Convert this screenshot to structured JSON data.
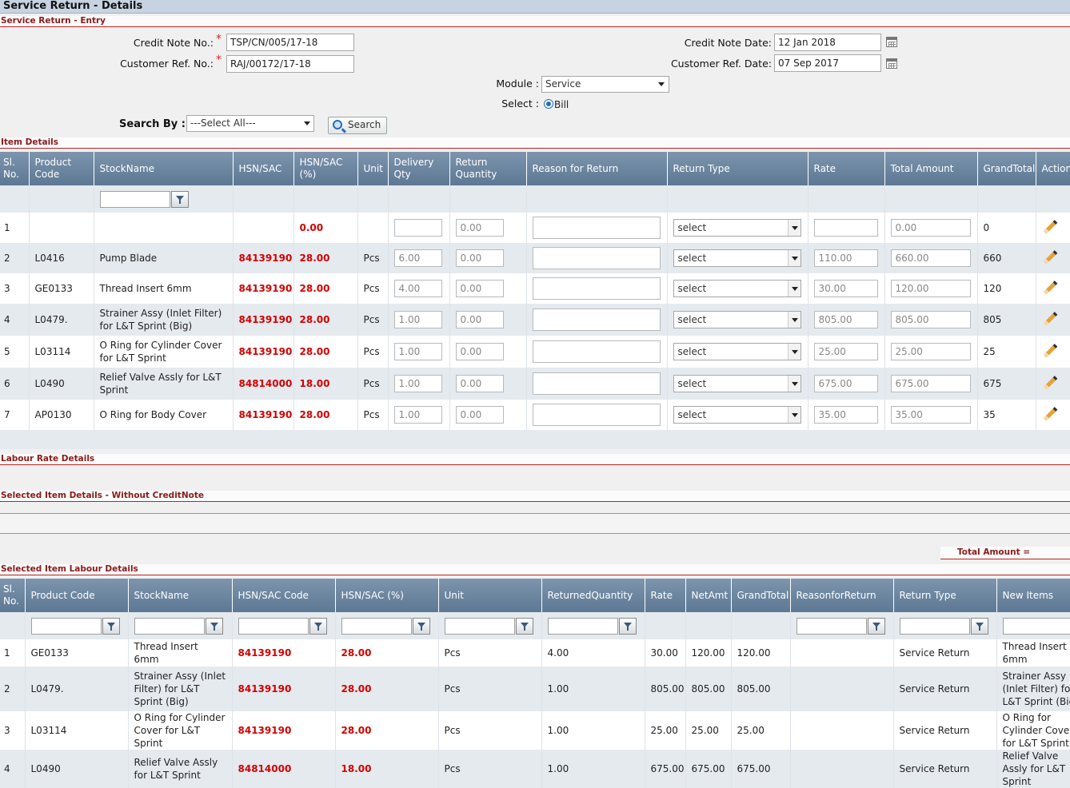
{
  "page_title": "Service Return - Details",
  "entry": {
    "section_title": "Service Return - Entry",
    "credit_note_no_label": "Credit Note No.:",
    "credit_note_no_value": "TSP/CN/005/17-18",
    "customer_ref_no_label": "Customer Ref. No.:",
    "customer_ref_no_value": "RAJ/00172/17-18",
    "required_mark": "*",
    "credit_note_date_label": "Credit Note Date:",
    "credit_note_date_value": "12 Jan 2018",
    "customer_ref_date_label": "Customer Ref. Date:",
    "customer_ref_date_value": "07 Sep 2017",
    "module_label": "Module :",
    "module_value": "Service",
    "select_label": "Select :",
    "select_option": "Bill",
    "search_by_label": "Search By :",
    "search_by_value": "---Select All---",
    "search_button": "Search"
  },
  "item_details": {
    "section_title": "Item Details",
    "headers": [
      "Sl. No.",
      "Product Code",
      "StockName",
      "HSN/SAC",
      "HSN/SAC (%)",
      "Unit",
      "Delivery Qty",
      "Return Quantity",
      "Reason for Return",
      "Return Type",
      "Rate",
      "Total Amount",
      "GrandTotal",
      "Action"
    ],
    "rows": [
      {
        "sl": "1",
        "code": "",
        "name": "",
        "hsn": "",
        "pct": "0.00",
        "unit": "",
        "delivery": "",
        "return_qty": "0.00",
        "reason": "",
        "return_type": "select",
        "rate": "",
        "total": "0.00",
        "grand": "0"
      },
      {
        "sl": "2",
        "code": "L0416",
        "name": "Pump Blade",
        "hsn": "84139190",
        "pct": "28.00",
        "unit": "Pcs",
        "delivery": "6.00",
        "return_qty": "0.00",
        "reason": "",
        "return_type": "select",
        "rate": "110.00",
        "total": "660.00",
        "grand": "660"
      },
      {
        "sl": "3",
        "code": "GE0133",
        "name": "Thread Insert 6mm",
        "hsn": "84139190",
        "pct": "28.00",
        "unit": "Pcs",
        "delivery": "4.00",
        "return_qty": "0.00",
        "reason": "",
        "return_type": "select",
        "rate": "30.00",
        "total": "120.00",
        "grand": "120"
      },
      {
        "sl": "4",
        "code": "L0479.",
        "name": "Strainer Assy (Inlet Filter) for L&T Sprint (Big)",
        "hsn": "84139190",
        "pct": "28.00",
        "unit": "Pcs",
        "delivery": "1.00",
        "return_qty": "0.00",
        "reason": "",
        "return_type": "select",
        "rate": "805.00",
        "total": "805.00",
        "grand": "805"
      },
      {
        "sl": "5",
        "code": "L03114",
        "name": "O Ring for Cylinder Cover for L&T Sprint",
        "hsn": "84139190",
        "pct": "28.00",
        "unit": "Pcs",
        "delivery": "1.00",
        "return_qty": "0.00",
        "reason": "",
        "return_type": "select",
        "rate": "25.00",
        "total": "25.00",
        "grand": "25"
      },
      {
        "sl": "6",
        "code": "L0490",
        "name": "Relief Valve Assly for L&T Sprint",
        "hsn": "84814000",
        "pct": "18.00",
        "unit": "Pcs",
        "delivery": "1.00",
        "return_qty": "0.00",
        "reason": "",
        "return_type": "select",
        "rate": "675.00",
        "total": "675.00",
        "grand": "675"
      },
      {
        "sl": "7",
        "code": "AP0130",
        "name": "O Ring for Body Cover",
        "hsn": "84139190",
        "pct": "28.00",
        "unit": "Pcs",
        "delivery": "1.00",
        "return_qty": "0.00",
        "reason": "",
        "return_type": "select",
        "rate": "35.00",
        "total": "35.00",
        "grand": "35"
      }
    ]
  },
  "labour_rate_details": {
    "section_title": "Labour Rate Details"
  },
  "selected_without_cn": {
    "section_title": "Selected Item Details - Without CreditNote"
  },
  "total_amount_label": "Total Amount  =",
  "selected_labour": {
    "section_title": "Selected Item Labour Details",
    "headers": [
      "Sl. No.",
      "Product Code",
      "StockName",
      "HSN/SAC Code",
      "HSN/SAC (%)",
      "Unit",
      "ReturnedQuantity",
      "Rate",
      "NetAmt",
      "GrandTotal",
      "ReasonforReturn",
      "Return Type",
      "New Items"
    ],
    "rows": [
      {
        "sl": "1",
        "code": "GE0133",
        "name": "Thread Insert 6mm",
        "hsn": "84139190",
        "pct": "28.00",
        "unit": "Pcs",
        "qty": "4.00",
        "rate": "30.00",
        "net": "120.00",
        "grand": "120.00",
        "reason": "",
        "type": "Service Return",
        "new_item": "Thread Insert 6mm"
      },
      {
        "sl": "2",
        "code": "L0479.",
        "name": "Strainer Assy (Inlet Filter) for L&T Sprint (Big)",
        "hsn": "84139190",
        "pct": "28.00",
        "unit": "Pcs",
        "qty": "1.00",
        "rate": "805.00",
        "net": "805.00",
        "grand": "805.00",
        "reason": "",
        "type": "Service Return",
        "new_item": "Strainer Assy (Inlet Filter) for L&T Sprint (Big)"
      },
      {
        "sl": "3",
        "code": "L03114",
        "name": "O Ring for Cylinder Cover for L&T Sprint",
        "hsn": "84139190",
        "pct": "28.00",
        "unit": "Pcs",
        "qty": "1.00",
        "rate": "25.00",
        "net": "25.00",
        "grand": "25.00",
        "reason": "",
        "type": "Service Return",
        "new_item": "O Ring for Cylinder Cover for L&T Sprint"
      },
      {
        "sl": "4",
        "code": "L0490",
        "name": "Relief Valve Assly for L&T Sprint",
        "hsn": "84814000",
        "pct": "18.00",
        "unit": "Pcs",
        "qty": "1.00",
        "rate": "675.00",
        "net": "675.00",
        "grand": "675.00",
        "reason": "",
        "type": "Service Return",
        "new_item": "Relief Valve Assly for L&T Sprint"
      }
    ]
  }
}
